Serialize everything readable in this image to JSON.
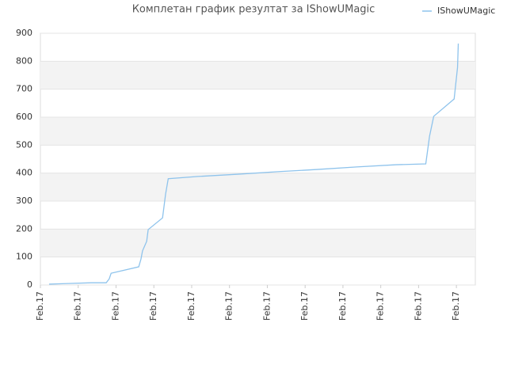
{
  "chart_data": {
    "type": "line",
    "title": "Комплетан график резултат за IShowUMagic",
    "x": [
      0.23,
      0.65,
      1.34,
      1.74,
      1.82,
      1.87,
      2.6,
      2.66,
      2.7,
      2.81,
      2.85,
      3.23,
      3.31,
      3.38,
      4.17,
      5.22,
      6.27,
      7.32,
      8.36,
      9.41,
      10.19,
      10.29,
      10.4,
      10.94,
      11.03,
      11.05
    ],
    "series": [
      {
        "name": "IShowUMagic",
        "color": "#8ec3ec",
        "values": [
          3,
          5,
          8,
          8,
          22,
          42,
          65,
          93,
          122,
          156,
          198,
          240,
          325,
          380,
          388,
          396,
          405,
          413,
          422,
          430,
          433,
          532,
          603,
          665,
          778,
          863
        ]
      }
    ],
    "xlim": [
      0,
      11.5
    ],
    "xticks": [
      {
        "value": 0,
        "label": "Feb.17"
      },
      {
        "value": 1,
        "label": "Feb.17"
      },
      {
        "value": 2,
        "label": "Feb.17"
      },
      {
        "value": 3,
        "label": "Feb.17"
      },
      {
        "value": 4,
        "label": "Feb.17"
      },
      {
        "value": 5,
        "label": "Feb.17"
      },
      {
        "value": 6,
        "label": "Feb.17"
      },
      {
        "value": 7,
        "label": "Feb.17"
      },
      {
        "value": 8,
        "label": "Feb.17"
      },
      {
        "value": 9,
        "label": "Feb.17"
      },
      {
        "value": 10,
        "label": "Feb.17"
      },
      {
        "value": 11,
        "label": "Feb.17"
      }
    ],
    "ylim": [
      0,
      900
    ],
    "yticks": [
      0,
      100,
      200,
      300,
      400,
      500,
      600,
      700,
      800,
      900
    ],
    "grid": true,
    "legend": "top-right"
  }
}
